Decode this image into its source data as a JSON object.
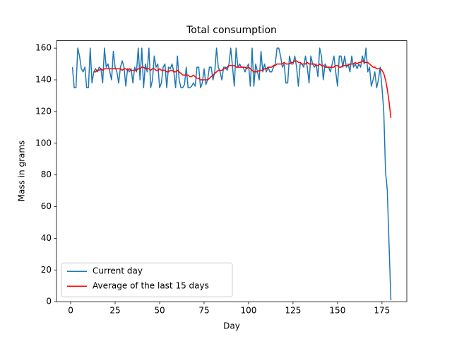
{
  "chart_data": {
    "type": "line",
    "title": "Total consumption",
    "xlabel": "Day",
    "ylabel": "Mass in grams",
    "x": [
      1,
      2,
      3,
      4,
      5,
      6,
      7,
      8,
      9,
      10,
      11,
      12,
      13,
      14,
      15,
      16,
      17,
      18,
      19,
      20,
      21,
      22,
      23,
      24,
      25,
      26,
      27,
      28,
      29,
      30,
      31,
      32,
      33,
      34,
      35,
      36,
      37,
      38,
      39,
      40,
      41,
      42,
      43,
      44,
      45,
      46,
      47,
      48,
      49,
      50,
      51,
      52,
      53,
      54,
      55,
      56,
      57,
      58,
      59,
      60,
      61,
      62,
      63,
      64,
      65,
      66,
      67,
      68,
      69,
      70,
      71,
      72,
      73,
      74,
      75,
      76,
      77,
      78,
      79,
      80,
      81,
      82,
      83,
      84,
      85,
      86,
      87,
      88,
      89,
      90,
      91,
      92,
      93,
      94,
      95,
      96,
      97,
      98,
      99,
      100,
      101,
      102,
      103,
      104,
      105,
      106,
      107,
      108,
      109,
      110,
      111,
      112,
      113,
      114,
      115,
      116,
      117,
      118,
      119,
      120,
      121,
      122,
      123,
      124,
      125,
      126,
      127,
      128,
      129,
      130,
      131,
      132,
      133,
      134,
      135,
      136,
      137,
      138,
      139,
      140,
      141,
      142,
      143,
      144,
      145,
      146,
      147,
      148,
      149,
      150,
      151,
      152,
      153,
      154,
      155,
      156,
      157,
      158,
      159,
      160,
      161,
      162,
      163,
      164,
      165,
      166,
      167,
      168,
      169,
      170,
      171,
      172,
      173,
      174,
      175,
      176,
      177,
      178,
      179,
      180
    ],
    "series": [
      {
        "name": "Current day",
        "color": "#1f77b4",
        "values": [
          148,
          135,
          135,
          160,
          155,
          147,
          145,
          148,
          135,
          135,
          160,
          138,
          145,
          147,
          145,
          148,
          147,
          138,
          160,
          148,
          150,
          145,
          140,
          158,
          148,
          145,
          138,
          148,
          152,
          148,
          136,
          147,
          145,
          147,
          138,
          148,
          145,
          160,
          140,
          160,
          135,
          150,
          145,
          160,
          135,
          140,
          155,
          148,
          150,
          135,
          138,
          148,
          150,
          135,
          148,
          147,
          150,
          145,
          135,
          155,
          140,
          135,
          135,
          137,
          148,
          135,
          135,
          136,
          138,
          136,
          148,
          148,
          135,
          138,
          147,
          137,
          140,
          148,
          148,
          140,
          145,
          160,
          148,
          145,
          140,
          148,
          148,
          146,
          150,
          160,
          148,
          136,
          160,
          148,
          150,
          148,
          148,
          145,
          148,
          150,
          136,
          160,
          136,
          150,
          145,
          140,
          158,
          145,
          150,
          145,
          148,
          145,
          145,
          148,
          150,
          160,
          160,
          155,
          148,
          150,
          138,
          138,
          155,
          150,
          150,
          155,
          148,
          136,
          150,
          150,
          148,
          155,
          148,
          138,
          155,
          150,
          148,
          150,
          142,
          160,
          155,
          140,
          150,
          148,
          148,
          145,
          150,
          155,
          145,
          136,
          155,
          155,
          148,
          155,
          148,
          150,
          145,
          155,
          148,
          150,
          147,
          150,
          148,
          155,
          150,
          160,
          145,
          148,
          136,
          140,
          145,
          135,
          140,
          148,
          135,
          120,
          82,
          70,
          35,
          1
        ]
      },
      {
        "name": "Average of the last 15 days",
        "color": "#ff0000",
        "values": [
          null,
          null,
          null,
          null,
          null,
          null,
          null,
          null,
          null,
          null,
          null,
          null,
          145,
          145,
          146,
          146,
          147,
          146,
          147,
          147,
          147,
          147,
          147,
          147,
          147,
          147,
          147,
          147,
          146,
          147,
          147,
          146,
          147,
          146,
          146,
          146,
          146,
          147,
          147,
          148,
          148,
          147,
          147,
          147,
          146,
          147,
          147,
          146,
          146,
          147,
          146,
          146,
          146,
          145,
          145,
          146,
          146,
          145,
          145,
          146,
          145,
          144,
          143,
          143,
          143,
          143,
          142,
          142,
          143,
          142,
          141,
          141,
          140,
          140,
          140,
          140,
          140,
          141,
          142,
          143,
          144,
          145,
          146,
          146,
          146,
          147,
          147,
          148,
          149,
          149,
          149,
          149,
          148,
          148,
          148,
          148,
          148,
          148,
          147,
          148,
          147,
          146,
          145,
          145,
          145,
          146,
          146,
          146,
          147,
          147,
          148,
          148,
          148,
          149,
          149,
          150,
          150,
          150,
          150,
          151,
          150,
          150,
          150,
          151,
          151,
          152,
          152,
          151,
          151,
          150,
          150,
          150,
          151,
          150,
          150,
          150,
          150,
          149,
          149,
          150,
          149,
          149,
          148,
          148,
          148,
          148,
          148,
          148,
          149,
          149,
          148,
          148,
          149,
          149,
          149,
          149,
          150,
          150,
          150,
          151,
          150,
          151,
          151,
          152,
          151,
          151,
          151,
          150,
          149,
          148,
          148,
          147,
          147,
          147,
          146,
          144,
          140,
          134,
          126,
          116
        ]
      }
    ],
    "xlim": [
      -7.95,
      188.95
    ],
    "xticks": [
      0,
      25,
      50,
      75,
      100,
      125,
      150,
      175
    ],
    "ylim": [
      0,
      164.7
    ],
    "yticks": [
      0,
      20,
      40,
      60,
      80,
      100,
      120,
      140,
      160
    ],
    "legend": "lower left"
  }
}
